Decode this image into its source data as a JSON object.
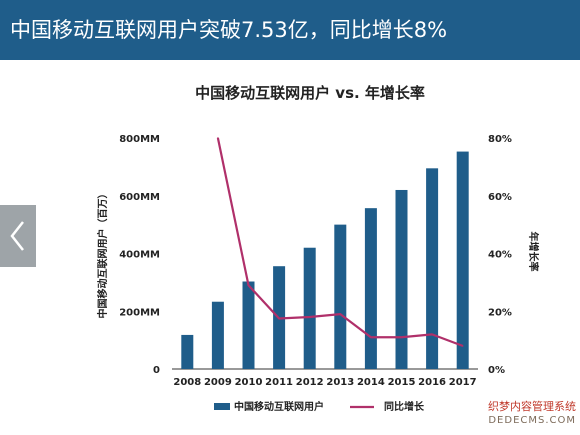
{
  "banner": {
    "title": "中国移动互联网用户突破7.53亿，同比增长8%",
    "bg": "#1f5d8a"
  },
  "watermark": {
    "line1": "织梦内容管理系统",
    "line2": "DEDECMS.COM"
  },
  "icons": {
    "prev": "chevron-left-icon"
  },
  "chart_data": {
    "type": "bar",
    "title": "中国移动互联网用户 vs. 年增长率",
    "categories": [
      "2008",
      "2009",
      "2010",
      "2011",
      "2012",
      "2013",
      "2014",
      "2015",
      "2016",
      "2017"
    ],
    "series": [
      {
        "name": "中国移动互联网用户",
        "type": "bar",
        "axis": "left",
        "color": "#1f5d8a",
        "values": [
          118,
          233,
          303,
          356,
          420,
          500,
          557,
          620,
          695,
          753
        ]
      },
      {
        "name": "同比增长",
        "type": "line",
        "axis": "right",
        "color": "#b0306a",
        "values": [
          null,
          80,
          29,
          17.5,
          18,
          19,
          11,
          11,
          12,
          8
        ]
      }
    ],
    "ylabel": "中国移动互联网用户（百万）",
    "ylabel_right": "年增长率",
    "ylim": [
      0,
      800
    ],
    "ylim_right": [
      0,
      80
    ],
    "yticks": [
      "0",
      "200MM",
      "400MM",
      "600MM",
      "800MM"
    ],
    "yticks_right": [
      "0%",
      "20%",
      "40%",
      "60%",
      "80%"
    ],
    "grid": false,
    "legend": "bottom"
  }
}
